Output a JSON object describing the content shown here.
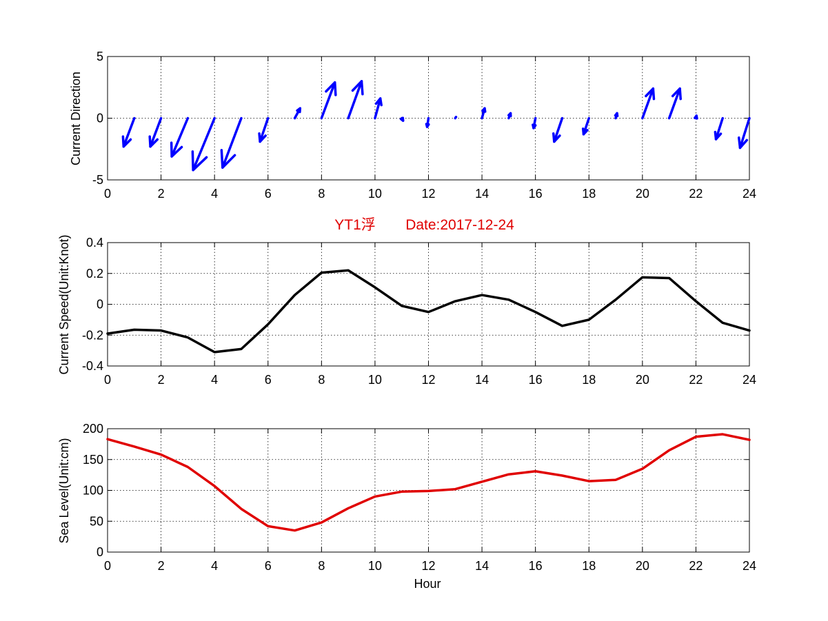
{
  "chart_data": [
    {
      "type": "quiver",
      "ylabel": "Current Direction",
      "xlim": [
        0,
        24
      ],
      "ylim": [
        -5,
        5
      ],
      "xticks": [
        "0",
        "2",
        "4",
        "6",
        "8",
        "10",
        "12",
        "14",
        "16",
        "18",
        "20",
        "22",
        "24"
      ],
      "yticks": [
        "-5",
        "0",
        "5"
      ],
      "grid": true,
      "color": "#0000ff",
      "vectors": [
        {
          "x": 1,
          "u": -0.4,
          "v": -2.3
        },
        {
          "x": 2,
          "u": -0.4,
          "v": -2.3
        },
        {
          "x": 3,
          "u": -0.6,
          "v": -3.1
        },
        {
          "x": 4,
          "u": -0.8,
          "v": -4.2
        },
        {
          "x": 5,
          "u": -0.7,
          "v": -4.0
        },
        {
          "x": 6,
          "u": -0.3,
          "v": -1.9
        },
        {
          "x": 7,
          "u": 0.2,
          "v": 0.8
        },
        {
          "x": 8,
          "u": 0.5,
          "v": 2.9
        },
        {
          "x": 9,
          "u": 0.5,
          "v": 3.0
        },
        {
          "x": 10,
          "u": 0.2,
          "v": 1.6
        },
        {
          "x": 11,
          "u": 0.05,
          "v": -0.2
        },
        {
          "x": 12,
          "u": -0.05,
          "v": -0.7
        },
        {
          "x": 13,
          "u": 0.03,
          "v": 0.1
        },
        {
          "x": 14,
          "u": 0.1,
          "v": 0.8
        },
        {
          "x": 15,
          "u": 0.07,
          "v": 0.4
        },
        {
          "x": 16,
          "u": -0.07,
          "v": -0.8
        },
        {
          "x": 17,
          "u": -0.3,
          "v": -1.9
        },
        {
          "x": 18,
          "u": -0.2,
          "v": -1.3
        },
        {
          "x": 19,
          "u": 0.05,
          "v": 0.4
        },
        {
          "x": 20,
          "u": 0.4,
          "v": 2.4
        },
        {
          "x": 21,
          "u": 0.4,
          "v": 2.4
        },
        {
          "x": 22,
          "u": 0.02,
          "v": 0.2
        },
        {
          "x": 23,
          "u": -0.25,
          "v": -1.7
        },
        {
          "x": 24,
          "u": -0.35,
          "v": -2.4
        }
      ]
    },
    {
      "type": "line",
      "title_left": "YT1浮",
      "title_right": "Date:2017-12-24",
      "ylabel": "Current Speed(Unit:Knot)",
      "xlim": [
        0,
        24
      ],
      "ylim": [
        -0.4,
        0.4
      ],
      "xticks": [
        "0",
        "2",
        "4",
        "6",
        "8",
        "10",
        "12",
        "14",
        "16",
        "18",
        "20",
        "22",
        "24"
      ],
      "yticks": [
        "-0.4",
        "-0.2",
        "0",
        "0.2",
        "0.4"
      ],
      "grid": true,
      "color": "#000000",
      "x": [
        0,
        1,
        2,
        3,
        4,
        5,
        6,
        7,
        8,
        9,
        10,
        11,
        12,
        13,
        14,
        15,
        16,
        17,
        18,
        19,
        20,
        21,
        22,
        23,
        24
      ],
      "y": [
        -0.19,
        -0.165,
        -0.17,
        -0.215,
        -0.31,
        -0.29,
        -0.13,
        0.06,
        0.205,
        0.22,
        0.11,
        -0.01,
        -0.05,
        0.02,
        0.06,
        0.03,
        -0.05,
        -0.14,
        -0.1,
        0.03,
        0.175,
        0.17,
        0.02,
        -0.12,
        -0.17
      ]
    },
    {
      "type": "line",
      "ylabel": "Sea Level(Unit:cm)",
      "xlabel": "Hour",
      "xlim": [
        0,
        24
      ],
      "ylim": [
        0,
        200
      ],
      "xticks": [
        "0",
        "2",
        "4",
        "6",
        "8",
        "10",
        "12",
        "14",
        "16",
        "18",
        "20",
        "22",
        "24"
      ],
      "yticks": [
        "0",
        "50",
        "100",
        "150",
        "200"
      ],
      "grid": true,
      "color": "#e00000",
      "x": [
        0,
        1,
        2,
        3,
        4,
        5,
        6,
        7,
        8,
        9,
        10,
        11,
        12,
        13,
        14,
        15,
        16,
        17,
        18,
        19,
        20,
        21,
        22,
        23,
        24
      ],
      "y": [
        183,
        171,
        158,
        138,
        107,
        70,
        42,
        35,
        48,
        71,
        90,
        98,
        99,
        102,
        114,
        126,
        131,
        124,
        115,
        117,
        135,
        165,
        187,
        191,
        182
      ]
    }
  ]
}
